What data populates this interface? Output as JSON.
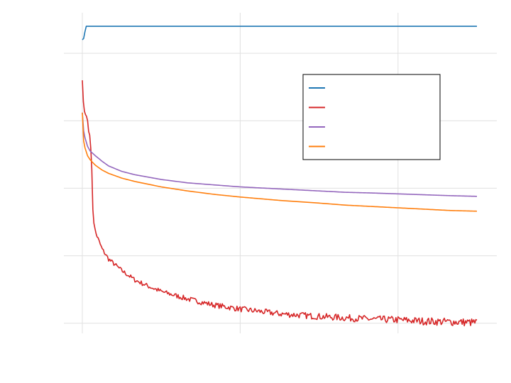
{
  "chart_data": {
    "type": "line",
    "title": "",
    "xlabel": "",
    "ylabel": "",
    "xlim": [
      0,
      3000
    ],
    "ylim": [
      -0.15,
      4.6
    ],
    "grid": true,
    "legend_position": "upper-right",
    "x_ticks": [
      0,
      1200,
      2400
    ],
    "y_ticks": [
      0,
      1,
      2,
      3,
      4
    ],
    "series": [
      {
        "name": "",
        "color": "#1f77b4",
        "x": [
          0,
          10,
          20,
          30,
          3000
        ],
        "y": [
          4.2,
          4.22,
          4.32,
          4.4,
          4.4
        ]
      },
      {
        "name": "",
        "color": "#d62728",
        "x": [
          0,
          5,
          10,
          20,
          30,
          40,
          50,
          60,
          70,
          80,
          90,
          100,
          120,
          150,
          200,
          300,
          400,
          500,
          600,
          800,
          1000,
          1200,
          1500,
          1800,
          2000,
          2200,
          2400,
          2600,
          2800,
          3000
        ],
        "y": [
          3.6,
          3.4,
          3.2,
          3.1,
          3.08,
          3.0,
          2.8,
          2.78,
          2.4,
          1.7,
          1.45,
          1.35,
          1.25,
          1.1,
          0.95,
          0.78,
          0.64,
          0.55,
          0.47,
          0.36,
          0.27,
          0.21,
          0.14,
          0.1,
          0.08,
          0.06,
          0.05,
          0.03,
          0.02,
          0.01
        ]
      },
      {
        "name": "",
        "color": "#9467bd",
        "x": [
          0,
          5,
          10,
          20,
          40,
          60,
          100,
          150,
          200,
          300,
          400,
          600,
          800,
          1000,
          1200,
          1500,
          1800,
          2000,
          2200,
          2500,
          2800,
          3000
        ],
        "y": [
          3.12,
          2.95,
          2.85,
          2.75,
          2.62,
          2.55,
          2.48,
          2.4,
          2.33,
          2.25,
          2.2,
          2.13,
          2.08,
          2.05,
          2.02,
          1.99,
          1.96,
          1.94,
          1.93,
          1.91,
          1.89,
          1.88
        ]
      },
      {
        "name": "",
        "color": "#ff7f0e",
        "x": [
          0,
          5,
          10,
          20,
          40,
          60,
          100,
          150,
          200,
          300,
          400,
          600,
          800,
          1000,
          1200,
          1500,
          1800,
          2000,
          2200,
          2500,
          2800,
          3000
        ],
        "y": [
          3.12,
          2.82,
          2.7,
          2.6,
          2.48,
          2.42,
          2.34,
          2.27,
          2.22,
          2.15,
          2.1,
          2.02,
          1.96,
          1.91,
          1.87,
          1.82,
          1.78,
          1.75,
          1.73,
          1.7,
          1.67,
          1.66
        ]
      }
    ]
  }
}
